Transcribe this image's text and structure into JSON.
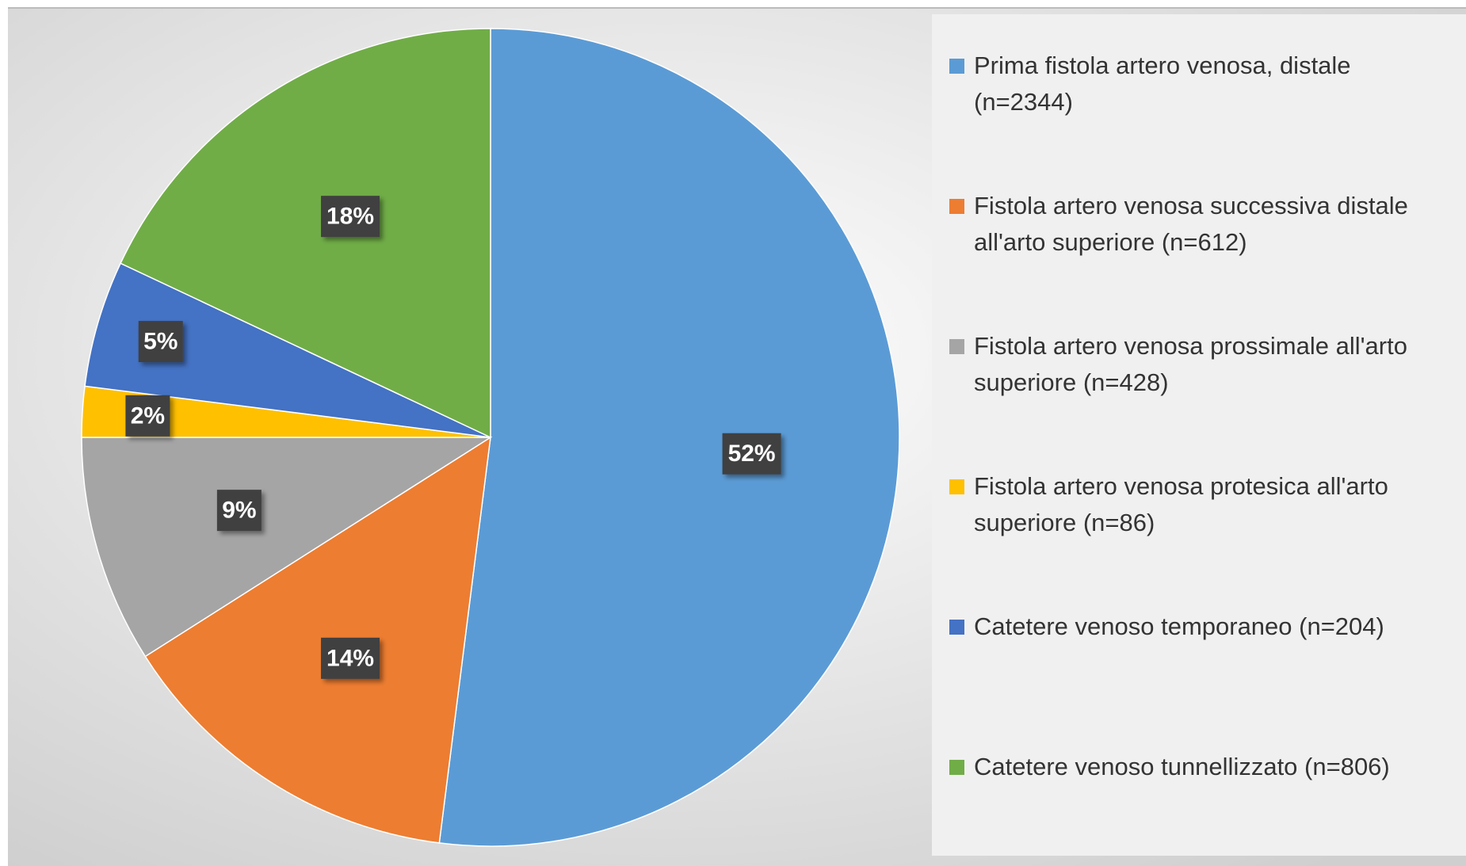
{
  "chart_data": {
    "type": "pie",
    "categories": [
      "Prima fistola artero venosa, distale (n=2344)",
      "Fistola artero venosa successiva distale all'arto superiore  (n=612)",
      "Fistola artero venosa prossimale all'arto superiore (n=428)",
      "Fistola artero venosa protesica all'arto superiore (n=86)",
      "Catetere venoso temporaneo (n=204)",
      "Catetere venoso tunnellizzato (n=806)"
    ],
    "values": [
      52,
      14,
      9,
      2,
      5,
      18
    ],
    "value_labels": [
      "52%",
      "14%",
      "9%",
      "2%",
      "5%",
      "18%"
    ],
    "colors": [
      "#5b9bd5",
      "#ed7d31",
      "#a5a5a5",
      "#ffc000",
      "#4472c4",
      "#70ad47"
    ],
    "legend": "right"
  }
}
